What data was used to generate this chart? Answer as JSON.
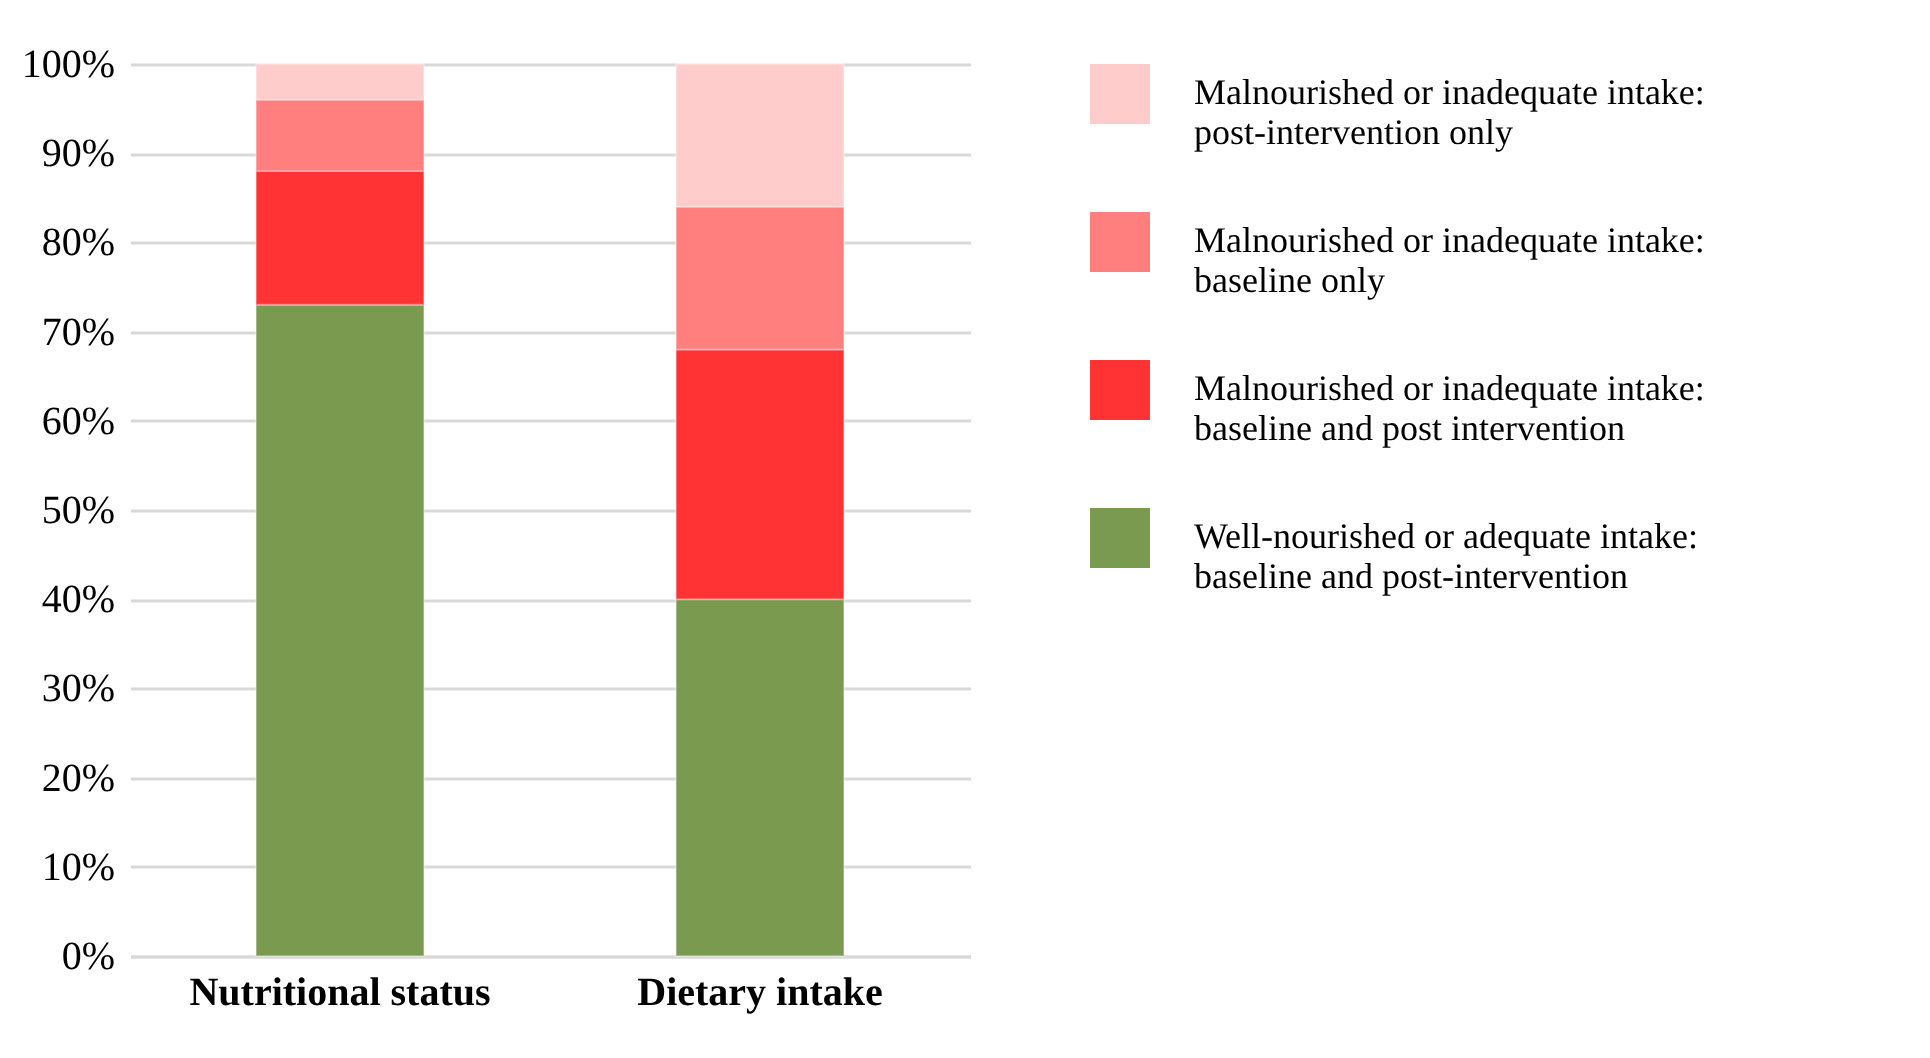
{
  "chart_data": {
    "type": "bar",
    "stacked": true,
    "categories": [
      "Nutritional status",
      "Dietary intake"
    ],
    "series": [
      {
        "name": "Well-nourished or adequate intake: baseline and post-intervention",
        "color": "#7a9a4f",
        "values": [
          73,
          40
        ]
      },
      {
        "name": "Malnourished or inadequate intake: baseline and post intervention",
        "color": "#ff3333",
        "values": [
          15,
          28
        ]
      },
      {
        "name": "Malnourished or inadequate intake: baseline only",
        "color": "#ff7f7f",
        "values": [
          8,
          16
        ]
      },
      {
        "name": "Malnourished or inadequate intake: post-intervention only",
        "color": "#ffcccc",
        "values": [
          4,
          16
        ]
      }
    ],
    "ylim": [
      0,
      100
    ],
    "yticks": [
      {
        "value": 0,
        "label": "0%"
      },
      {
        "value": 10,
        "label": "10%"
      },
      {
        "value": 20,
        "label": "20%"
      },
      {
        "value": 30,
        "label": "30%"
      },
      {
        "value": 40,
        "label": "40%"
      },
      {
        "value": 50,
        "label": "50%"
      },
      {
        "value": 60,
        "label": "60%"
      },
      {
        "value": 70,
        "label": "70%"
      },
      {
        "value": 80,
        "label": "80%"
      },
      {
        "value": 90,
        "label": "90%"
      },
      {
        "value": 100,
        "label": "100%"
      }
    ],
    "grid": "y",
    "legend": "right"
  }
}
